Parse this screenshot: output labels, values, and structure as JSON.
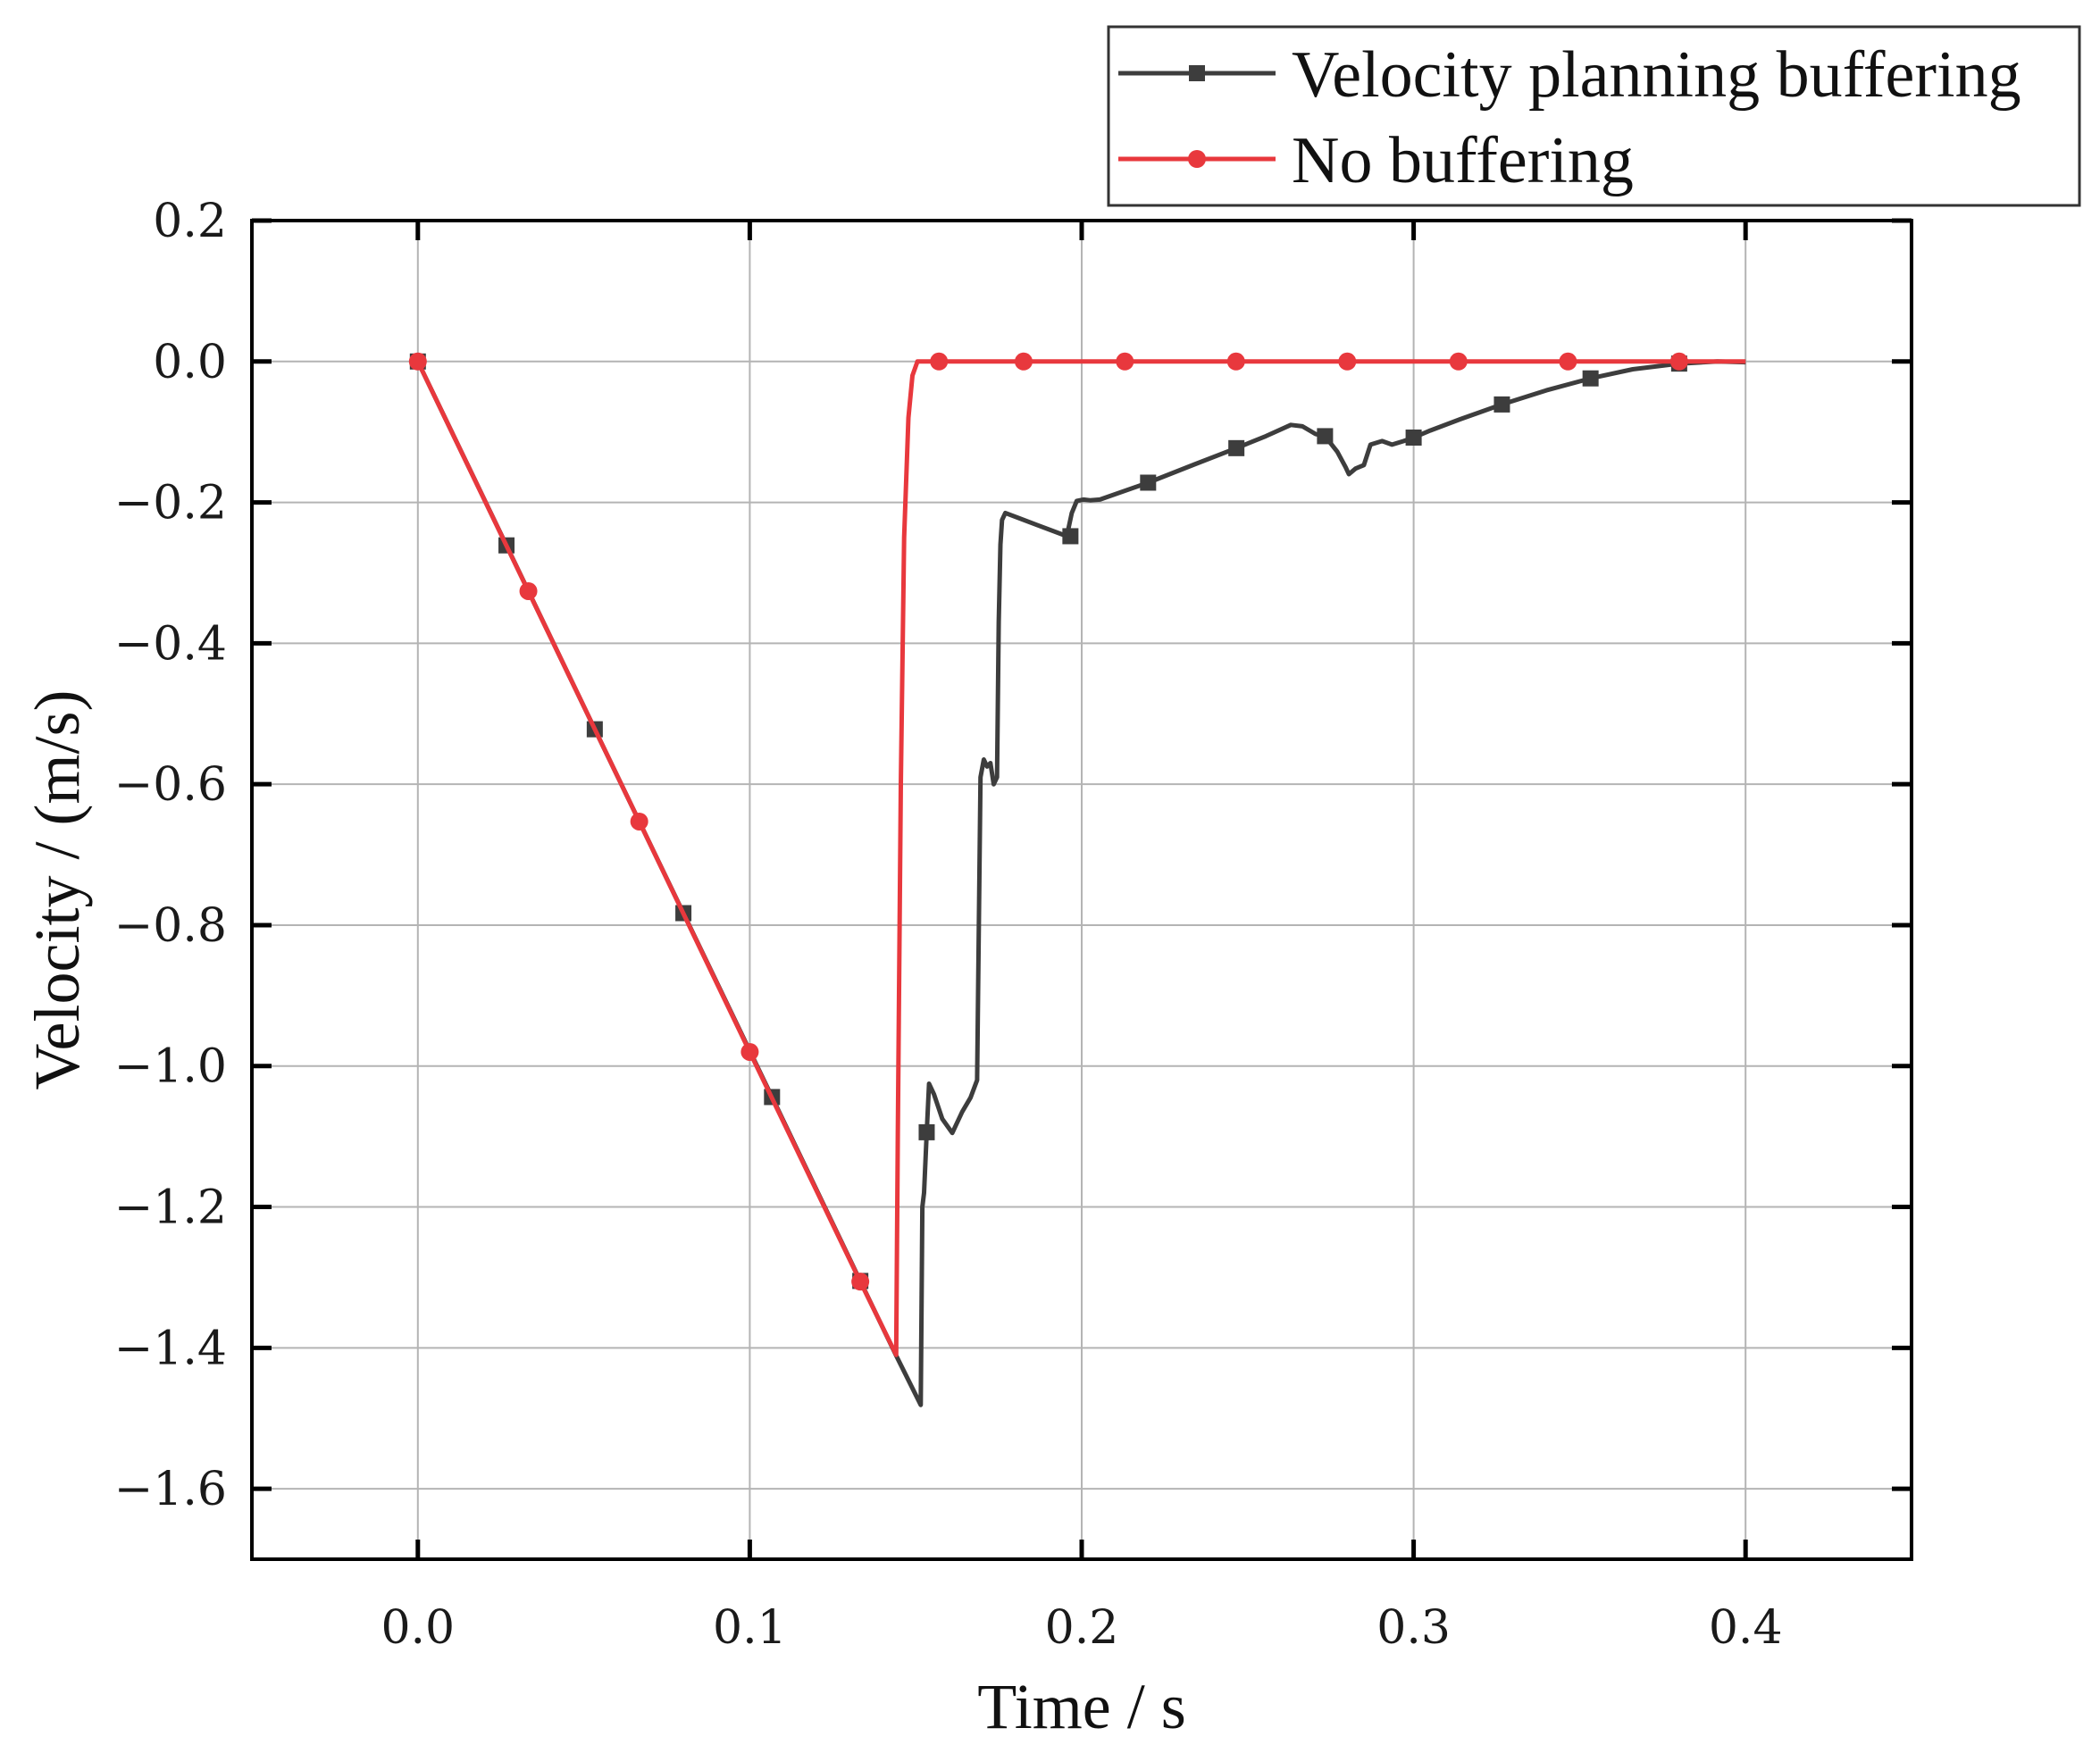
{
  "chart_data": {
    "type": "line",
    "title": "",
    "xlabel": "Time / s",
    "ylabel": "Velocity / (m/s)",
    "xlim": [
      -0.05,
      0.45
    ],
    "ylim": [
      -1.7,
      0.2
    ],
    "x_ticks": [
      0.0,
      0.1,
      0.2,
      0.3,
      0.4
    ],
    "x_tick_labels": [
      "0.0",
      "0.1",
      "0.2",
      "0.3",
      "0.4"
    ],
    "y_ticks": [
      0.2,
      0.0,
      -0.2,
      -0.4,
      -0.6,
      -0.8,
      -1.0,
      -1.2,
      -1.4,
      -1.6
    ],
    "y_tick_labels": [
      "0.2",
      "0.0",
      "−0.2",
      "−0.4",
      "−0.6",
      "−0.8",
      "−1.0",
      "−1.2",
      "−1.4",
      "−1.6"
    ],
    "grid": true,
    "legend_position": "top-right, above plot",
    "series": [
      {
        "name": "Velocity planning buffering",
        "color": "#3d3d3d",
        "marker": "square",
        "x": [
          0.0,
          0.0267,
          0.0533,
          0.08,
          0.1067,
          0.1333,
          0.144,
          0.1515,
          0.152,
          0.1525,
          0.1533,
          0.154,
          0.1555,
          0.158,
          0.161,
          0.164,
          0.1665,
          0.1685,
          0.1695,
          0.1705,
          0.1715,
          0.1725,
          0.1735,
          0.1745,
          0.175,
          0.1755,
          0.176,
          0.177,
          0.1865,
          0.1955,
          0.197,
          0.1985,
          0.2005,
          0.2025,
          0.2055,
          0.22,
          0.234,
          0.2466,
          0.2555,
          0.263,
          0.2665,
          0.2705,
          0.2733,
          0.277,
          0.2795,
          0.2805,
          0.2825,
          0.285,
          0.287,
          0.2905,
          0.2935,
          0.297,
          0.3,
          0.305,
          0.314,
          0.3266,
          0.34,
          0.3533,
          0.366,
          0.38,
          0.3915,
          0.4
        ],
        "y": [
          0.0,
          -0.261,
          -0.522,
          -0.783,
          -1.044,
          -1.305,
          -1.41,
          -1.481,
          -1.2,
          -1.18,
          -1.094,
          -1.025,
          -1.04,
          -1.075,
          -1.095,
          -1.065,
          -1.045,
          -1.02,
          -0.59,
          -0.565,
          -0.575,
          -0.57,
          -0.6,
          -0.59,
          -0.37,
          -0.26,
          -0.225,
          -0.215,
          -0.232,
          -0.248,
          -0.215,
          -0.198,
          -0.196,
          -0.197,
          -0.196,
          -0.172,
          -0.146,
          -0.123,
          -0.106,
          -0.09,
          -0.092,
          -0.103,
          -0.106,
          -0.128,
          -0.15,
          -0.16,
          -0.152,
          -0.147,
          -0.118,
          -0.113,
          -0.118,
          -0.113,
          -0.108,
          -0.098,
          -0.082,
          -0.061,
          -0.041,
          -0.024,
          -0.011,
          -0.003,
          0.0,
          -0.001
        ],
        "marker_x": [
          0.0,
          0.0267,
          0.0533,
          0.08,
          0.1067,
          0.1333,
          0.1533,
          0.1966,
          0.22,
          0.2466,
          0.2733,
          0.3,
          0.3266,
          0.3533,
          0.38
        ],
        "marker_y": [
          0.0,
          -0.261,
          -0.522,
          -0.783,
          -1.044,
          -1.305,
          -1.094,
          -0.248,
          -0.172,
          -0.123,
          -0.106,
          -0.108,
          -0.061,
          -0.024,
          -0.003
        ]
      },
      {
        "name": "No buffering",
        "color": "#e8383d",
        "marker": "circle",
        "x": [
          0.0,
          0.0333,
          0.0667,
          0.1,
          0.1333,
          0.1441,
          0.1446,
          0.1455,
          0.1465,
          0.1478,
          0.149,
          0.1505,
          0.1526,
          0.157,
          0.1825,
          0.213,
          0.2465,
          0.28,
          0.3135,
          0.3465,
          0.38,
          0.4
        ],
        "y": [
          0.0,
          -0.326,
          -0.653,
          -0.98,
          -1.306,
          -1.41,
          -1.1,
          -0.6,
          -0.25,
          -0.08,
          -0.02,
          0.0,
          0.0,
          0.0,
          0.0,
          0.0,
          0.0,
          0.0,
          0.0,
          0.0,
          0.0,
          0.0
        ],
        "marker_x": [
          0.0,
          0.0333,
          0.0667,
          0.1,
          0.1333,
          0.157,
          0.1825,
          0.213,
          0.2465,
          0.28,
          0.3135,
          0.3465,
          0.38
        ],
        "marker_y": [
          0.0,
          -0.326,
          -0.653,
          -0.98,
          -1.306,
          0.0,
          0.0,
          0.0,
          0.0,
          0.0,
          0.0,
          0.0,
          0.0
        ]
      }
    ]
  }
}
